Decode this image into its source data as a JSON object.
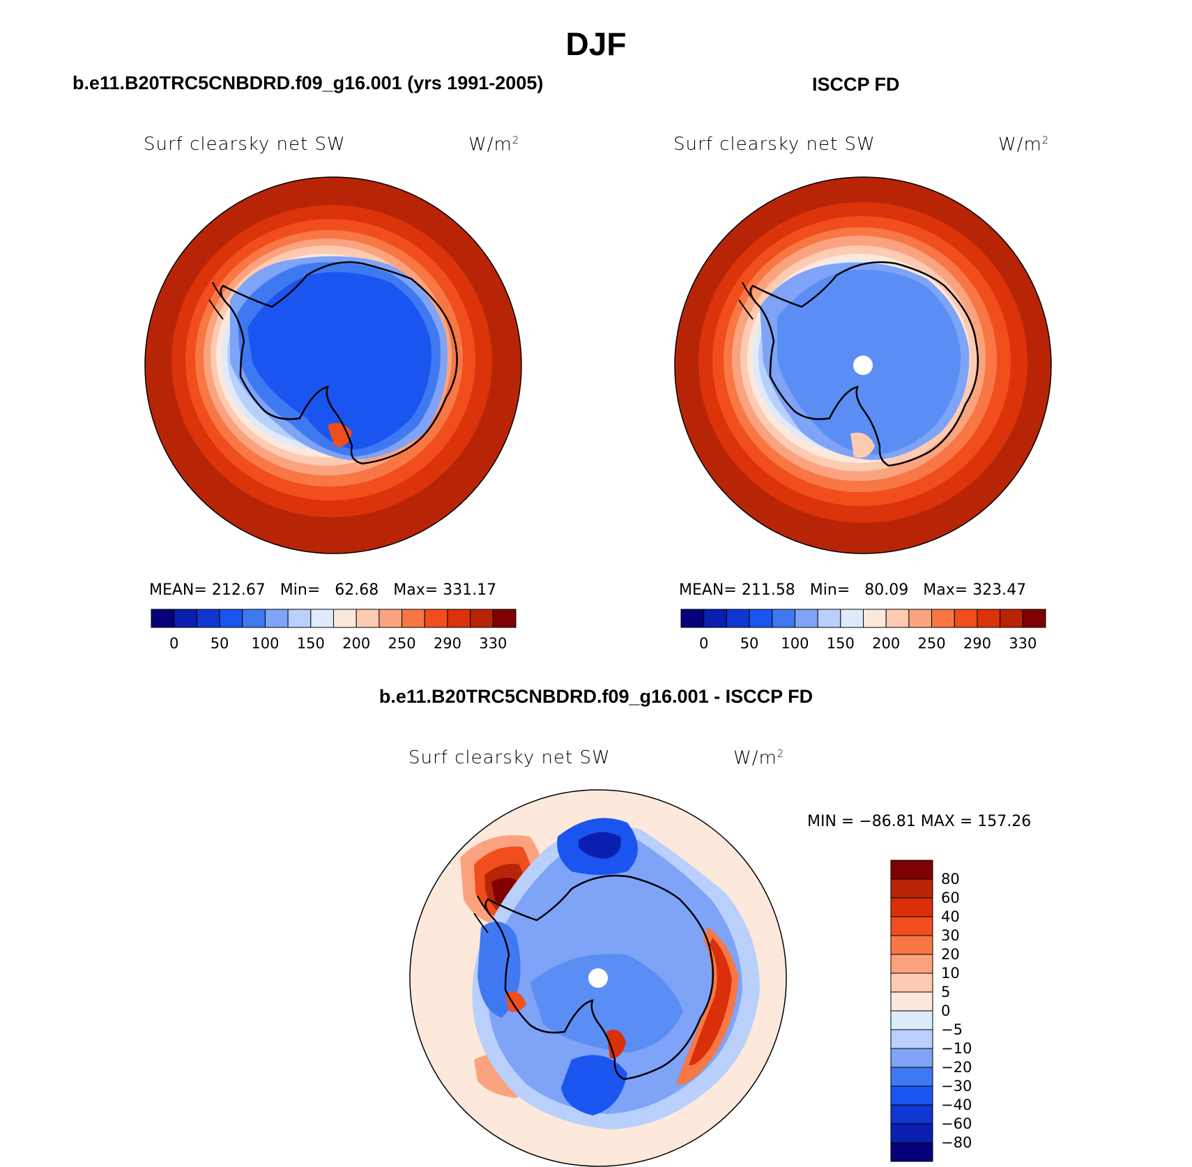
{
  "title": "DJF",
  "panels": {
    "model": {
      "title": "b.e11.B20TRC5CNBDRD.f09_g16.001 (yrs 1991-2005)",
      "variable": "Surf clearsky net SW",
      "units_base": "W/m",
      "units_exp": "2",
      "stats": {
        "mean_label": "MEAN=",
        "mean": "212.67",
        "min_label": "Min=",
        "min": "62.68",
        "max_label": "Max=",
        "max": "331.17"
      }
    },
    "obs": {
      "title": "ISCCP FD",
      "variable": "Surf clearsky net SW",
      "units_base": "W/m",
      "units_exp": "2",
      "stats": {
        "mean_label": "MEAN=",
        "mean": "211.58",
        "min_label": "Min=",
        "min": "80.09",
        "max_label": "Max=",
        "max": "323.47"
      }
    },
    "diff": {
      "title": "b.e11.B20TRC5CNBDRD.f09_g16.001 - ISCCP FD",
      "variable": "Surf clearsky net SW",
      "units_base": "W/m",
      "units_exp": "2",
      "minmax_text": "MIN = −86.81  MAX = 157.26"
    }
  },
  "chart_data": [
    {
      "type": "heatmap",
      "name": "model",
      "projection": "south polar stereographic",
      "colorbar": {
        "orientation": "horizontal",
        "colors": [
          "#06007a",
          "#0a1fb0",
          "#0f37d1",
          "#1b55f0",
          "#3f79f2",
          "#7ea3f7",
          "#b8d0fb",
          "#deebfd",
          "#fde8dc",
          "#fccbb1",
          "#fba37f",
          "#f87745",
          "#f04e1c",
          "#db330a",
          "#b82506",
          "#7e0000"
        ],
        "tick_labels": [
          "0",
          "50",
          "100",
          "150",
          "200",
          "250",
          "290",
          "330"
        ]
      }
    },
    {
      "type": "heatmap",
      "name": "obs",
      "projection": "south polar stereographic",
      "colorbar": {
        "orientation": "horizontal",
        "colors": [
          "#06007a",
          "#0a1fb0",
          "#0f37d1",
          "#1b55f0",
          "#3f79f2",
          "#7ea3f7",
          "#b8d0fb",
          "#deebfd",
          "#fde8dc",
          "#fccbb1",
          "#fba37f",
          "#f87745",
          "#f04e1c",
          "#db330a",
          "#b82506",
          "#7e0000"
        ],
        "tick_labels": [
          "0",
          "50",
          "100",
          "150",
          "200",
          "250",
          "290",
          "330"
        ]
      }
    },
    {
      "type": "heatmap",
      "name": "difference",
      "projection": "south polar stereographic",
      "colorbar": {
        "orientation": "vertical",
        "colors_top_to_bottom": [
          "#7e0000",
          "#b82506",
          "#d9300a",
          "#f04e1c",
          "#f87745",
          "#fba37f",
          "#fccbb1",
          "#fde8dc",
          "#deebfd",
          "#b8d0fb",
          "#7ea3f7",
          "#3f79f2",
          "#1b55f0",
          "#0f37d1",
          "#0a1fb0",
          "#06007a"
        ],
        "tick_labels_top_to_bottom": [
          "80",
          "60",
          "40",
          "30",
          "20",
          "10",
          "5",
          "0",
          "−5",
          "−10",
          "−20",
          "−30",
          "−40",
          "−60",
          "−80"
        ]
      }
    }
  ]
}
